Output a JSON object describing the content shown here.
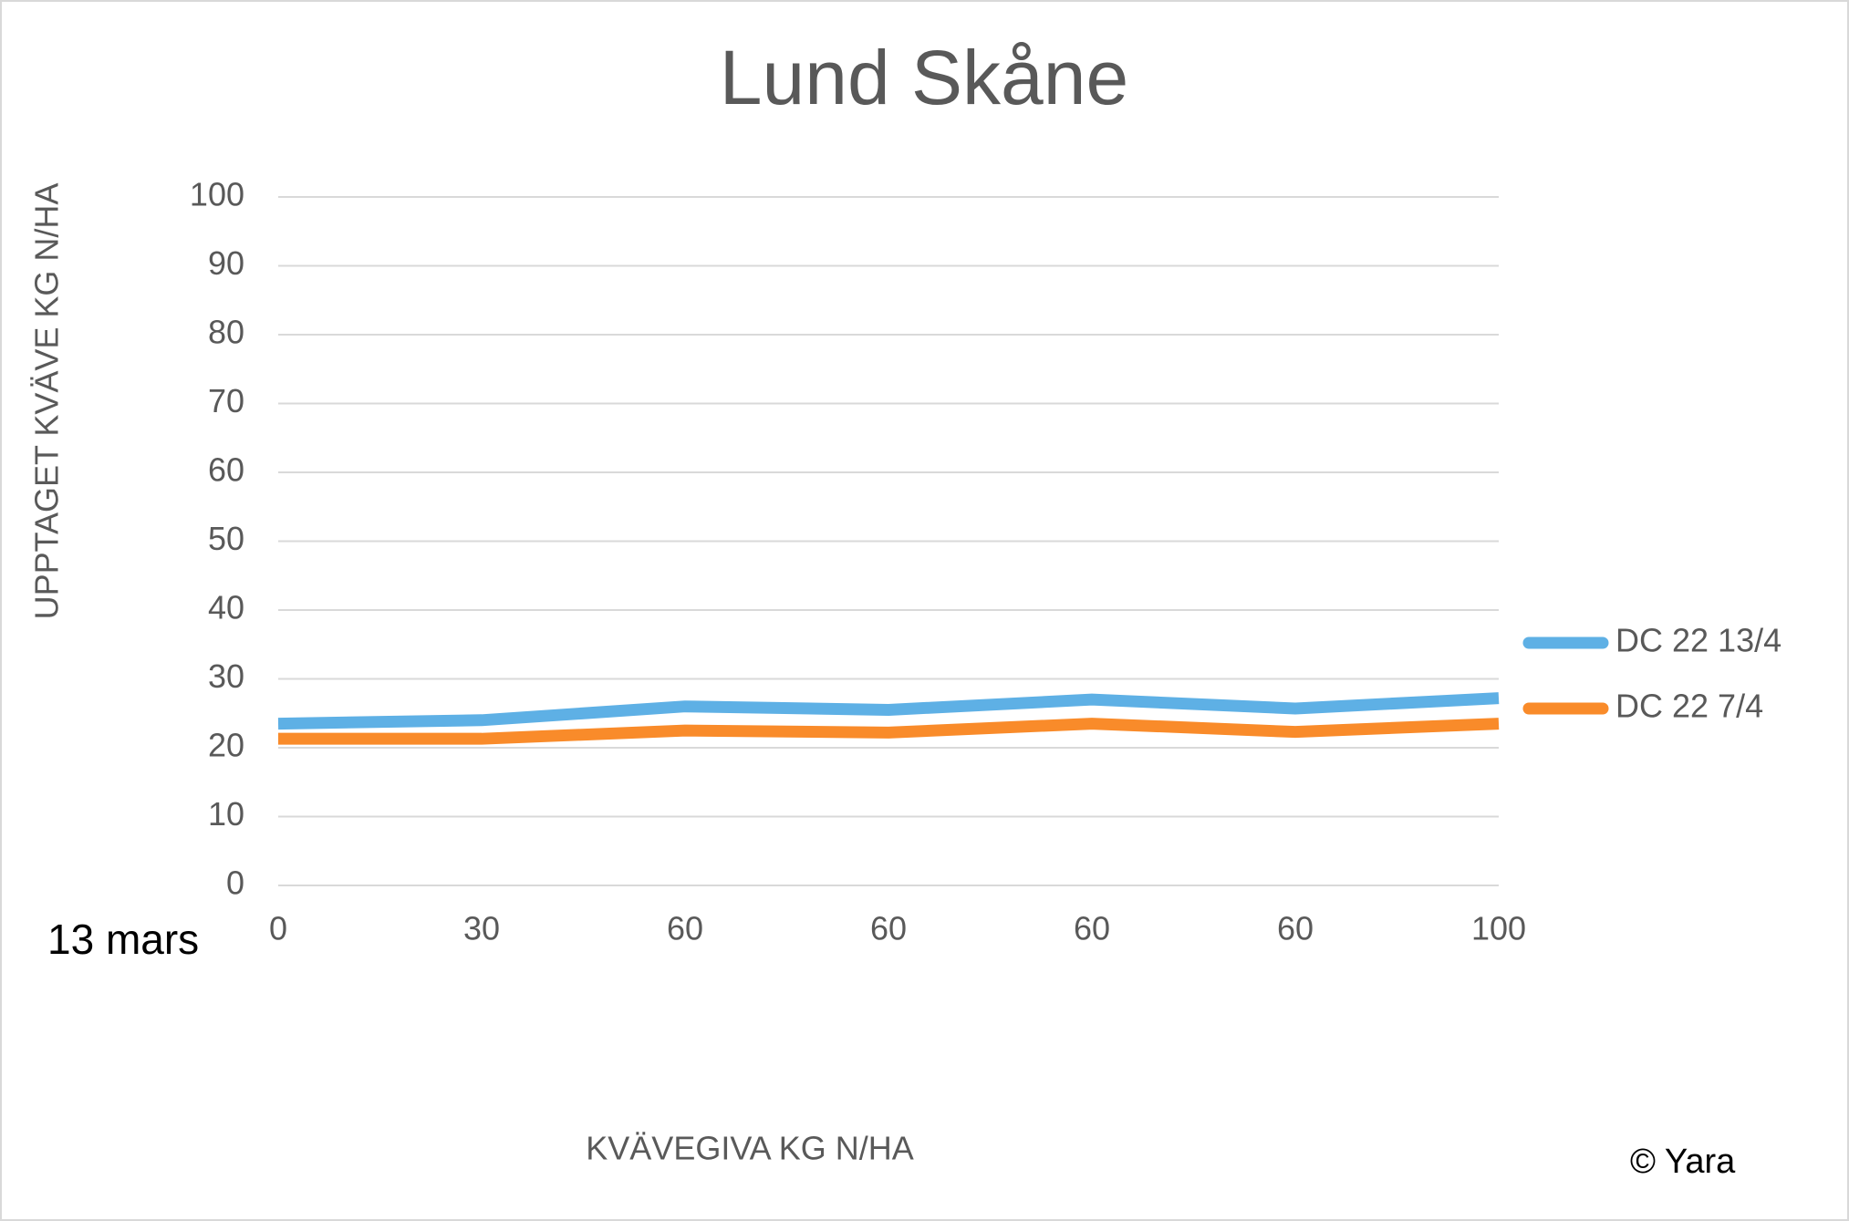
{
  "chart_data": {
    "type": "line",
    "title": "Lund Skåne",
    "x_label": "KVÄVEGIVA  KG N/HA",
    "y_label": "UPPTAGET KVÄVE KG N/HA",
    "annotations": [
      "13 mars",
      "© Yara"
    ],
    "categories": [
      "0",
      "30",
      "60",
      "60",
      "60",
      "60",
      "100"
    ],
    "series": [
      {
        "name": "DC 22 13/4",
        "color": "#5eb0e5",
        "values": [
          23.5,
          24,
          26,
          25.5,
          27,
          25.7,
          27.2
        ]
      },
      {
        "name": "DC 22 7/4",
        "color": "#f98b2a",
        "values": [
          21.3,
          21.3,
          22.5,
          22.2,
          23.5,
          22.3,
          23.5
        ]
      }
    ],
    "ylim": [
      0,
      100
    ],
    "yticks": [
      0,
      10,
      20,
      30,
      40,
      50,
      60,
      70,
      80,
      90,
      100
    ],
    "grid": true,
    "legend": "right"
  }
}
